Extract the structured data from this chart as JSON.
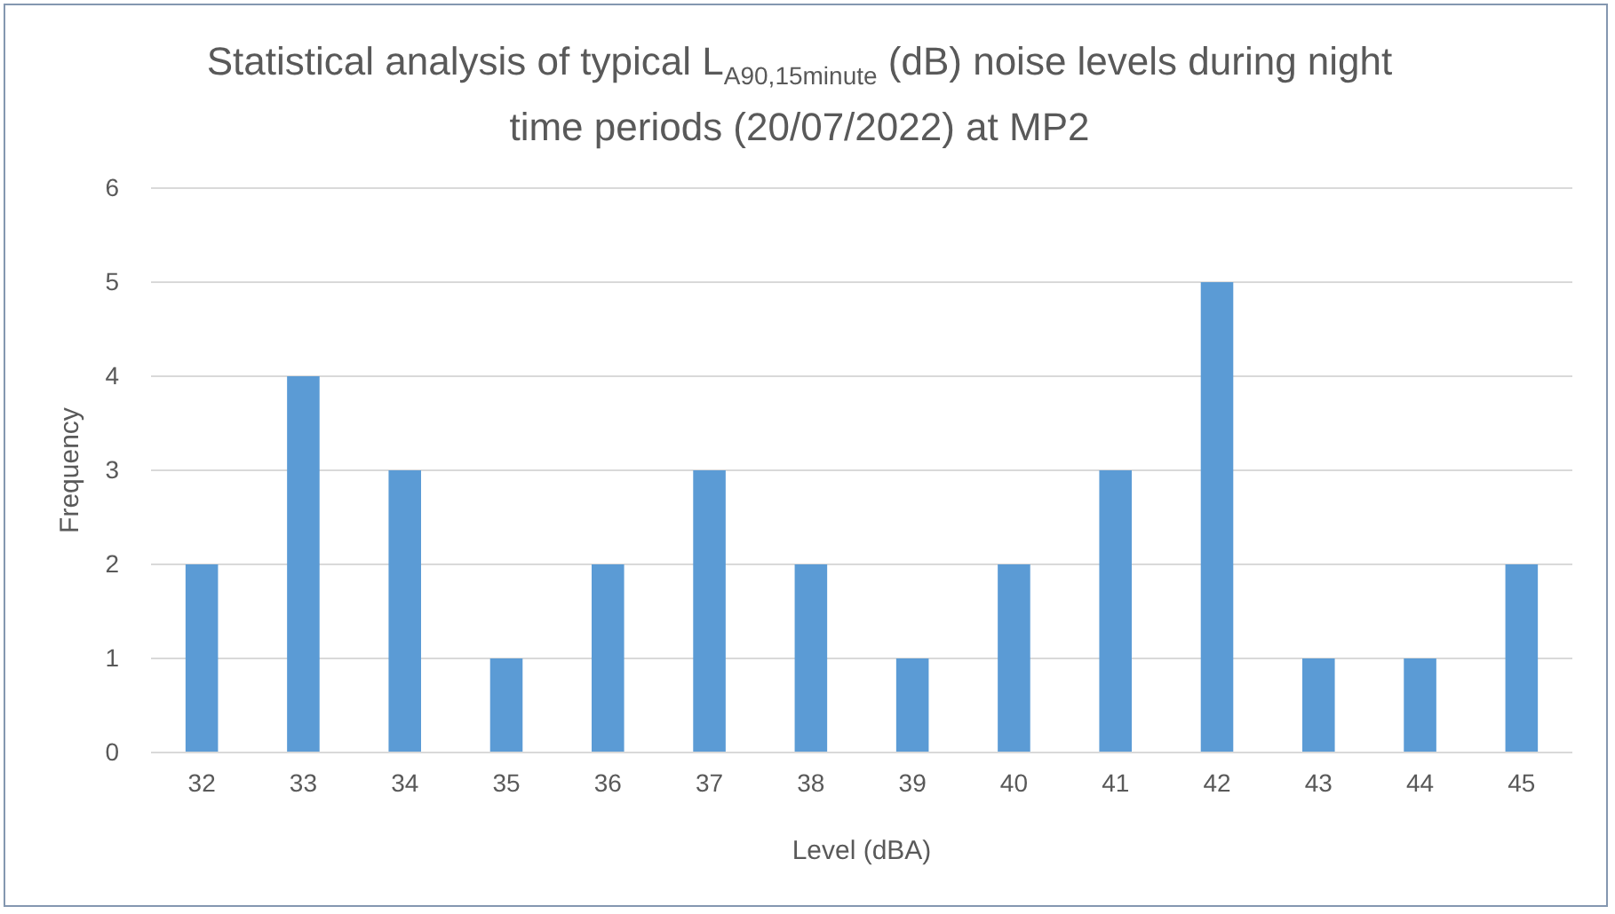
{
  "chart_data": {
    "type": "bar",
    "title": "Statistical analysis of typical L$_{A90,15minute}$ (dB) noise levels during night time periods (20/07/2022) at MP2",
    "xlabel": "Level (dBA)",
    "ylabel": "Frequency",
    "categories": [
      "32",
      "33",
      "34",
      "35",
      "36",
      "37",
      "38",
      "39",
      "40",
      "41",
      "42",
      "43",
      "44",
      "45"
    ],
    "values": [
      2,
      4,
      3,
      1,
      2,
      3,
      2,
      1,
      2,
      3,
      5,
      1,
      1,
      2
    ],
    "color": "#5b9bd5",
    "ylim": [
      0,
      6
    ],
    "yticks": [
      0,
      1,
      2,
      3,
      4,
      5,
      6
    ],
    "grid": "y",
    "legend": false
  }
}
